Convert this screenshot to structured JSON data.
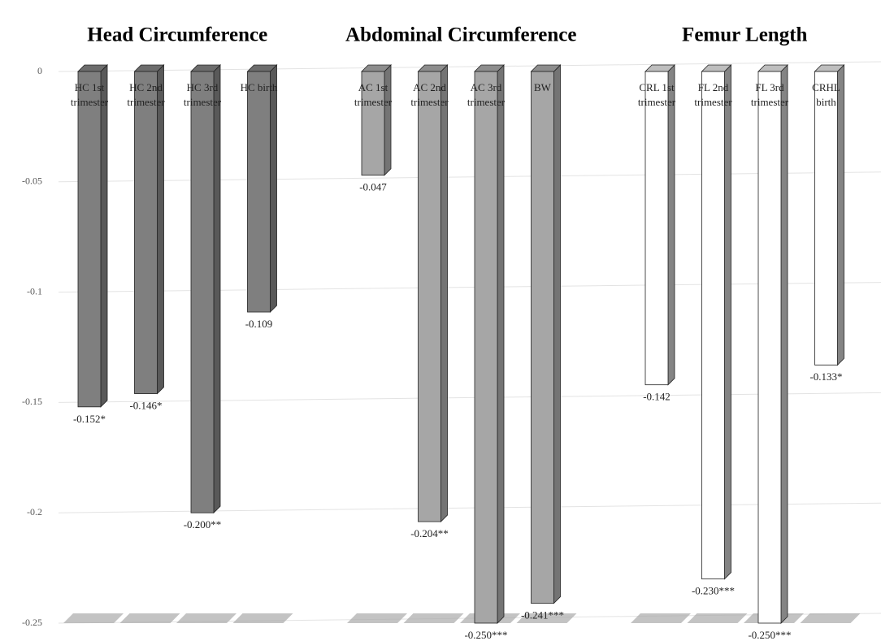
{
  "chart_data": {
    "type": "bar",
    "ylim": [
      0,
      -0.25
    ],
    "yticks": [
      0,
      -0.05,
      -0.1,
      -0.15,
      -0.2,
      -0.25
    ],
    "grid": true,
    "groups": [
      {
        "title": "Head Circumference",
        "color": "#7f7f7f",
        "categories": [
          "HC 1st trimester",
          "HC 2nd trimester",
          "HC 3rd trimester",
          "HC birth"
        ],
        "values": [
          -0.152,
          -0.146,
          -0.2,
          -0.109
        ],
        "value_labels": [
          "-0.152*",
          "-0.146*",
          "-0.200**",
          "-0.109"
        ]
      },
      {
        "title": "Abdominal Circumference",
        "color": "#a6a6a6",
        "categories": [
          "AC 1st trimester",
          "AC 2nd trimester",
          "AC 3rd trimester",
          "BW"
        ],
        "values": [
          -0.047,
          -0.204,
          -0.25,
          -0.241
        ],
        "value_labels": [
          "-0.047",
          "-0.204**",
          "-0.250***",
          "-0.241***"
        ]
      },
      {
        "title": "Femur Length",
        "color": "#ffffff",
        "categories": [
          "CRL 1st trimester",
          "FL 2nd trimester",
          "FL 3rd trimester",
          "CRHL birth"
        ],
        "values": [
          -0.142,
          -0.23,
          -0.25,
          -0.133
        ],
        "value_labels": [
          "-0.142",
          "-0.230***",
          "-0.250***",
          "-0.133*"
        ]
      }
    ]
  }
}
